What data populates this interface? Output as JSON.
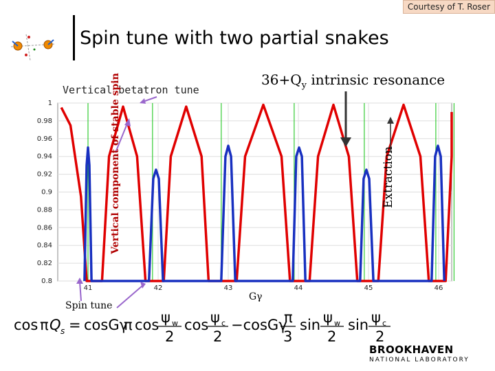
{
  "courtesy": "Courtesy of T. Roser",
  "title": "Spin tune with two partial snakes",
  "annotations": {
    "vertical_betatron_tune": "Vertical betatron tune",
    "resonance_prefix": "36+Q",
    "resonance_sub": "y",
    "resonance_suffix": " intrinsic resonance",
    "spin_tune": "Spin tune",
    "g_gamma": "Gγ",
    "extraction": "Extraction"
  },
  "formula_text": "cosπQs = cosGγπ cos ψw/2 cos ψc/2 − cosGγ π/3 sin ψw/2 sin ψc/2",
  "footer": {
    "logo_line1": "BROOKHAVEN",
    "logo_line2": "NATIONAL LABORATORY"
  },
  "colors": {
    "red_curve": "#e00000",
    "blue_curve": "#1830c0",
    "grid": "#33cc33",
    "arrow": "#9966cc"
  },
  "chart_data": {
    "type": "line",
    "title": "",
    "xlabel": "Gγ",
    "ylabel": "Vertical component of stable spin",
    "xlim": [
      40.6,
      46.3
    ],
    "ylim": [
      0.8,
      1.0
    ],
    "x_ticks": [
      "41",
      "42",
      "43",
      "44",
      "45",
      "46"
    ],
    "y_ticks": [
      "1",
      "0.98",
      "0.96",
      "0.94",
      "0.92",
      "0.9",
      "0.88",
      "0.86",
      "0.84",
      "0.82",
      "0.8"
    ],
    "grid": true,
    "series": [
      {
        "color": "#e00000",
        "description_points": [
          [
            40.62,
            0.995
          ],
          [
            40.75,
            0.975
          ],
          [
            40.9,
            0.895
          ],
          [
            40.98,
            0.8
          ],
          [
            41.2,
            0.8
          ],
          [
            41.3,
            0.94
          ],
          [
            41.5,
            0.996
          ],
          [
            41.7,
            0.94
          ],
          [
            41.82,
            0.8
          ],
          [
            42.08,
            0.8
          ],
          [
            42.18,
            0.94
          ],
          [
            42.4,
            0.996
          ],
          [
            42.62,
            0.94
          ],
          [
            42.72,
            0.8
          ],
          [
            43.12,
            0.8
          ],
          [
            43.24,
            0.94
          ],
          [
            43.5,
            0.998
          ],
          [
            43.76,
            0.94
          ],
          [
            43.88,
            0.8
          ],
          [
            44.16,
            0.8
          ],
          [
            44.28,
            0.94
          ],
          [
            44.5,
            0.998
          ],
          [
            44.72,
            0.94
          ],
          [
            44.84,
            0.8
          ],
          [
            45.14,
            0.8
          ],
          [
            45.26,
            0.94
          ],
          [
            45.5,
            0.998
          ],
          [
            45.74,
            0.94
          ],
          [
            45.86,
            0.8
          ],
          [
            46.1,
            0.8
          ],
          [
            46.2,
            0.94
          ],
          [
            46.3,
            0.99
          ]
        ]
      },
      {
        "color": "#1830c0",
        "description_points": [
          [
            40.95,
            0.8
          ],
          [
            40.98,
            0.93
          ],
          [
            41.0,
            0.95
          ],
          [
            41.02,
            0.93
          ],
          [
            41.05,
            0.8
          ],
          [
            41.87,
            0.8
          ],
          [
            41.93,
            0.915
          ],
          [
            41.97,
            0.925
          ],
          [
            42.01,
            0.915
          ],
          [
            42.07,
            0.8
          ],
          [
            42.9,
            0.8
          ],
          [
            42.96,
            0.94
          ],
          [
            43.0,
            0.952
          ],
          [
            43.04,
            0.94
          ],
          [
            43.1,
            0.8
          ],
          [
            43.92,
            0.8
          ],
          [
            43.97,
            0.94
          ],
          [
            44.01,
            0.95
          ],
          [
            44.05,
            0.94
          ],
          [
            44.1,
            0.8
          ],
          [
            44.88,
            0.8
          ],
          [
            44.93,
            0.915
          ],
          [
            44.97,
            0.925
          ],
          [
            45.01,
            0.915
          ],
          [
            45.07,
            0.8
          ],
          [
            45.9,
            0.8
          ],
          [
            45.95,
            0.94
          ],
          [
            45.99,
            0.952
          ],
          [
            46.03,
            0.94
          ],
          [
            46.08,
            0.8
          ]
        ]
      }
    ],
    "vertical_markers": [
      41.0,
      41.92,
      42.9,
      43.94,
      44.94,
      45.96,
      46.22
    ]
  }
}
